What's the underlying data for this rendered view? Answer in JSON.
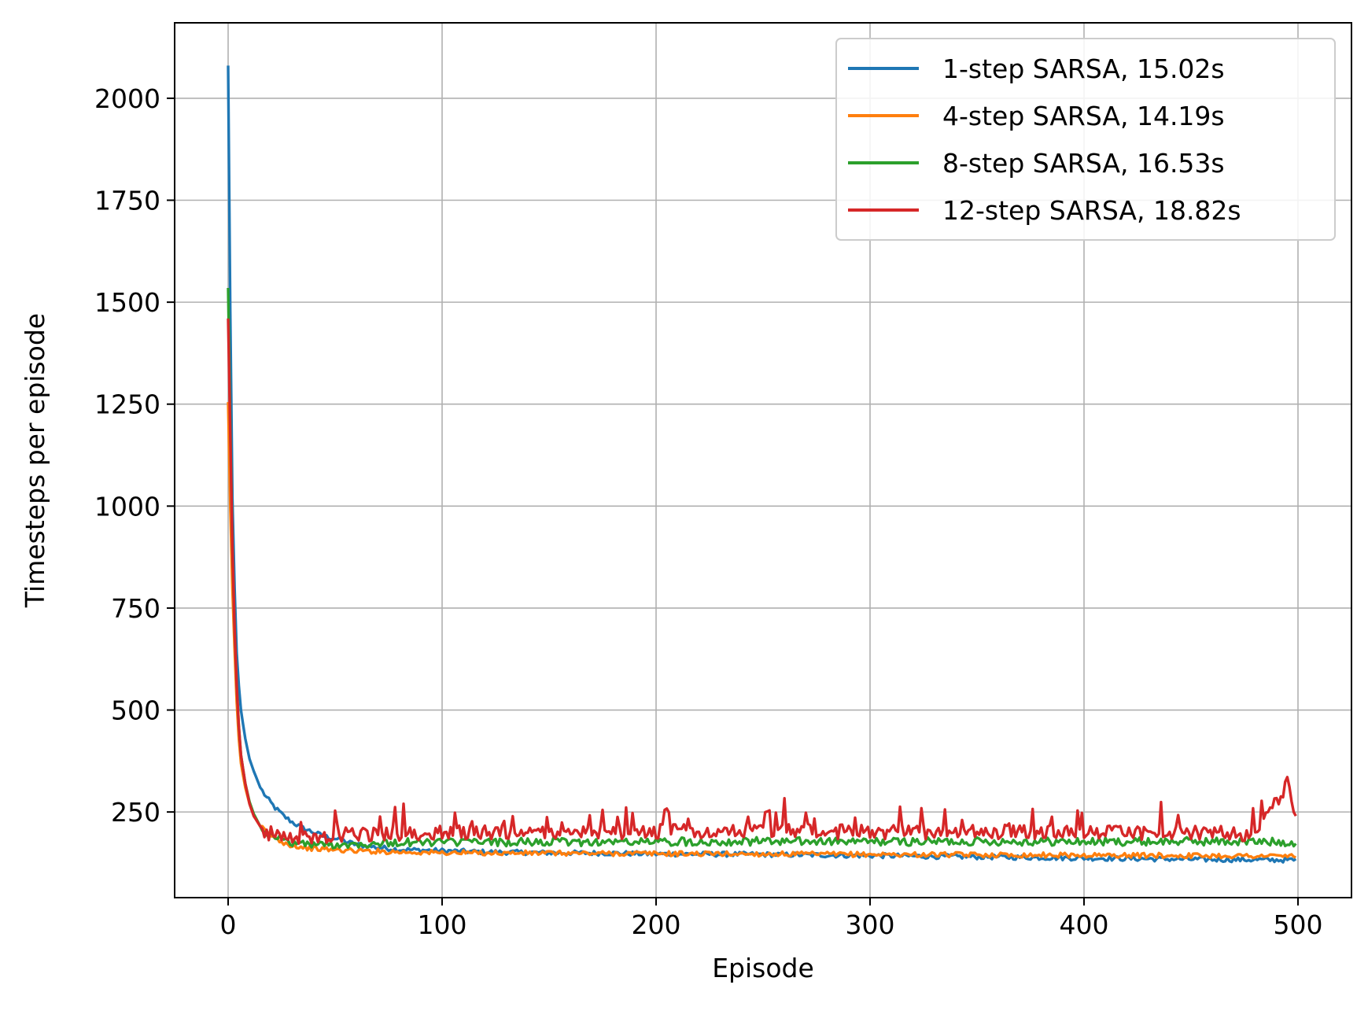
{
  "chart_data": {
    "type": "line",
    "title": "",
    "xlabel": "Episode",
    "ylabel": "Timesteps per episode",
    "xlim": [
      -25,
      525
    ],
    "ylim": [
      40,
      2185
    ],
    "xticks": [
      0,
      100,
      200,
      300,
      400,
      500
    ],
    "yticks": [
      250,
      500,
      750,
      1000,
      1250,
      1500,
      1750,
      2000
    ],
    "grid": true,
    "legend": "top-right",
    "colors": [
      "#1f77b4",
      "#ff7f0e",
      "#2ca02c",
      "#d62728"
    ],
    "series": [
      {
        "name": "1-step SARSA, 15.02s",
        "color": "#1f77b4",
        "x": [
          0,
          1,
          2,
          3,
          4,
          5,
          6,
          8,
          10,
          12,
          15,
          18,
          22,
          26,
          30,
          35,
          40,
          45,
          50,
          60,
          70,
          80,
          100,
          120,
          150,
          180,
          200,
          250,
          300,
          350,
          400,
          450,
          499
        ],
        "y": [
          2080,
          1480,
          1020,
          800,
          640,
          560,
          500,
          430,
          380,
          350,
          310,
          285,
          260,
          240,
          225,
          210,
          200,
          190,
          185,
          170,
          163,
          158,
          155,
          152,
          150,
          149,
          147,
          146,
          143,
          140,
          137,
          134,
          132
        ]
      },
      {
        "name": "4-step SARSA, 14.19s",
        "color": "#ff7f0e",
        "x": [
          0,
          1,
          2,
          3,
          4,
          5,
          6,
          8,
          10,
          12,
          15,
          18,
          22,
          26,
          30,
          35,
          40,
          50,
          60,
          80,
          100,
          150,
          200,
          250,
          300,
          350,
          400,
          450,
          499
        ],
        "y": [
          1255,
          1000,
          800,
          650,
          520,
          430,
          370,
          310,
          270,
          240,
          215,
          200,
          185,
          175,
          168,
          163,
          160,
          157,
          155,
          152,
          150,
          149,
          148,
          147,
          146,
          145,
          144,
          143,
          142
        ]
      },
      {
        "name": "8-step SARSA, 16.53s",
        "color": "#2ca02c",
        "x": [
          0,
          1,
          2,
          3,
          4,
          5,
          6,
          8,
          10,
          12,
          15,
          18,
          22,
          26,
          30,
          35,
          40,
          50,
          60,
          80,
          100,
          150,
          200,
          250,
          300,
          350,
          400,
          450,
          499
        ],
        "y": [
          1535,
          1200,
          900,
          700,
          560,
          460,
          390,
          320,
          275,
          245,
          215,
          200,
          190,
          180,
          175,
          172,
          170,
          170,
          172,
          175,
          176,
          176,
          177,
          178,
          177,
          178,
          177,
          178,
          176
        ]
      },
      {
        "name": "12-step SARSA, 18.82s",
        "color": "#d62728",
        "x": [
          0,
          1,
          2,
          3,
          4,
          5,
          6,
          8,
          10,
          12,
          15,
          18,
          22,
          26,
          30,
          35,
          40,
          50,
          60,
          80,
          100,
          150,
          200,
          250,
          300,
          350,
          400,
          450,
          480,
          495,
          499
        ],
        "y": [
          1460,
          1180,
          900,
          700,
          560,
          460,
          390,
          320,
          270,
          240,
          215,
          200,
          195,
          190,
          188,
          188,
          190,
          192,
          195,
          198,
          200,
          200,
          202,
          205,
          200,
          202,
          200,
          200,
          195,
          320,
          250
        ]
      }
    ]
  }
}
